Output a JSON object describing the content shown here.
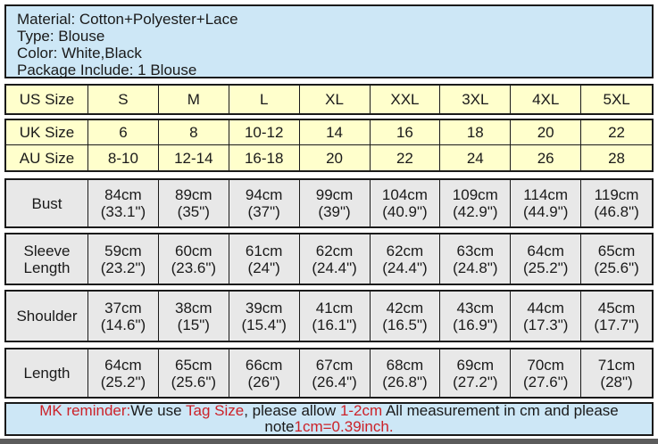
{
  "colors": {
    "info_bg": "#cde7f6",
    "size_rows_bg": "#ffffcc",
    "measure_rows_bg": "#e8e8e8",
    "border": "#1a1a1a",
    "accent_red": "#cc2229",
    "text": "#1a1a1a",
    "bottom_strip": "#5c5c5c"
  },
  "info": {
    "lines": [
      "Material: Cotton+Polyester+Lace",
      "Type: Blouse",
      "Color: White,Black",
      "Package Include: 1 Blouse"
    ]
  },
  "size_table": {
    "us": {
      "label": "US Size",
      "values": [
        "S",
        "M",
        "L",
        "XL",
        "XXL",
        "3XL",
        "4XL",
        "5XL"
      ]
    },
    "uk": {
      "label": "UK Size",
      "values": [
        "6",
        "8",
        "10-12",
        "14",
        "16",
        "18",
        "20",
        "22"
      ]
    },
    "au": {
      "label": "AU Size",
      "values": [
        "8-10",
        "12-14",
        "16-18",
        "20",
        "22",
        "24",
        "26",
        "28"
      ]
    },
    "measurements": [
      {
        "label": "Bust",
        "cm": [
          "84cm",
          "89cm",
          "94cm",
          "99cm",
          "104cm",
          "109cm",
          "114cm",
          "119cm"
        ],
        "inch": [
          "(33.1\")",
          "(35\")",
          "(37\")",
          "(39\")",
          "(40.9\")",
          "(42.9\")",
          "(44.9\")",
          "(46.8\")"
        ]
      },
      {
        "label": "Sleeve Length",
        "cm": [
          "59cm",
          "60cm",
          "61cm",
          "62cm",
          "62cm",
          "63cm",
          "64cm",
          "65cm"
        ],
        "inch": [
          "(23.2\")",
          "(23.6\")",
          "(24\")",
          "(24.4\")",
          "(24.4\")",
          "(24.8\")",
          "(25.2\")",
          "(25.6\")"
        ]
      },
      {
        "label": "Shoulder",
        "cm": [
          "37cm",
          "38cm",
          "39cm",
          "41cm",
          "42cm",
          "43cm",
          "44cm",
          "45cm"
        ],
        "inch": [
          "(14.6\")",
          "(15\")",
          "(15.4\")",
          "(16.1\")",
          "(16.5\")",
          "(16.9\")",
          "(17.3\")",
          "(17.7\")"
        ]
      },
      {
        "label": "Length",
        "cm": [
          "64cm",
          "65cm",
          "66cm",
          "67cm",
          "68cm",
          "69cm",
          "70cm",
          "71cm"
        ],
        "inch": [
          "(25.2\")",
          "(25.6\")",
          "(26\")",
          "(26.4\")",
          "(26.8\")",
          "(27.2\")",
          "(27.6\")",
          "(28\")"
        ]
      }
    ]
  },
  "reminder": {
    "line1": [
      {
        "text": "MK reminder:",
        "color": "#cc2229"
      },
      {
        "text": "We use ",
        "color": "#1a1a1a"
      },
      {
        "text": "Tag Size",
        "color": "#cc2229"
      },
      {
        "text": ", please allow ",
        "color": "#1a1a1a"
      },
      {
        "text": "1-2cm",
        "color": "#cc2229"
      },
      {
        "text": " All measurement in cm and please",
        "color": "#1a1a1a"
      }
    ],
    "line2": [
      {
        "text": "note",
        "color": "#1a1a1a"
      },
      {
        "text": "1cm=0.39inch.",
        "color": "#cc2229"
      }
    ]
  }
}
